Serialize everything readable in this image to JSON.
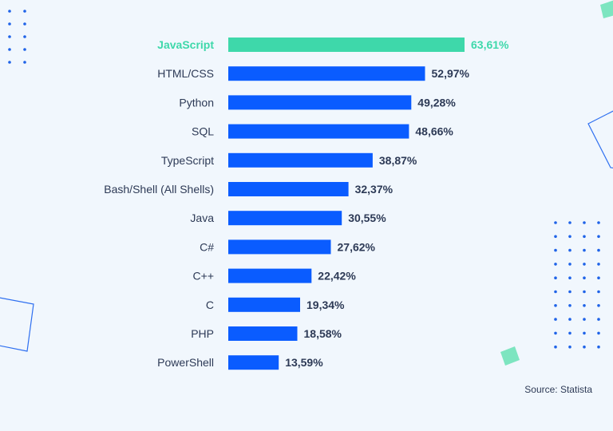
{
  "chart_data": {
    "type": "bar",
    "orientation": "horizontal",
    "categories": [
      "JavaScript",
      "HTML/CSS",
      "Python",
      "SQL",
      "TypeScript",
      "Bash/Shell (All Shells)",
      "Java",
      "C#",
      "C++",
      "C",
      "PHP",
      "PowerShell"
    ],
    "values": [
      63.61,
      52.97,
      49.28,
      48.66,
      38.87,
      32.37,
      30.55,
      27.62,
      22.42,
      19.34,
      18.58,
      13.59
    ],
    "value_labels": [
      "63,61%",
      "52,97%",
      "49,28%",
      "48,66%",
      "38,87%",
      "32,37%",
      "30,55%",
      "27,62%",
      "22,42%",
      "19,34%",
      "18,58%",
      "13,59%"
    ],
    "highlight_index": 0,
    "highlight_color": "#3ed8aa",
    "bar_color": "#0a5cff",
    "title": "",
    "xlabel": "",
    "ylabel": "",
    "grid": false,
    "legend": "none"
  },
  "source": "Source: Statista",
  "colors": {
    "background": "#f1f7fd",
    "text": "#2d3a56",
    "decor_dots": "#1f63e8",
    "decor_outline": "#2e6ff0",
    "decor_square": "#7de5c0"
  }
}
